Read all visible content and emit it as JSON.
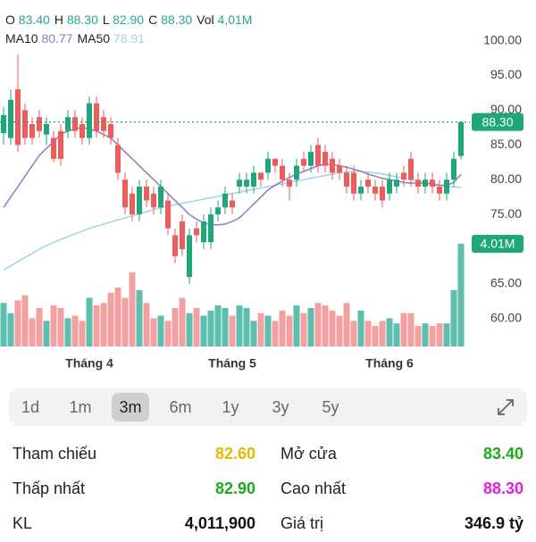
{
  "header": {
    "line1": [
      {
        "key": "O",
        "value": "83.40"
      },
      {
        "key": "H",
        "value": "88.30"
      },
      {
        "key": "L",
        "value": "82.90"
      },
      {
        "key": "C",
        "value": "88.30"
      },
      {
        "key": "Vol",
        "value": "4,01M"
      }
    ],
    "line2": [
      {
        "key": "MA10",
        "value": "80.77",
        "color": "#8e7cc3"
      },
      {
        "key": "MA50",
        "value": "78.91",
        "color": "#9fd3ea"
      }
    ]
  },
  "chart_data": {
    "type": "candlestick",
    "categories": [
      null,
      null,
      null,
      null,
      null,
      null,
      null,
      null,
      null,
      null,
      null,
      null,
      "Tháng 4",
      null,
      null,
      null,
      null,
      null,
      null,
      null,
      null,
      null,
      null,
      null,
      null,
      null,
      null,
      null,
      null,
      null,
      null,
      null,
      "Tháng 5",
      null,
      null,
      null,
      null,
      null,
      null,
      null,
      null,
      null,
      null,
      null,
      null,
      null,
      null,
      null,
      null,
      null,
      null,
      null,
      null,
      null,
      "Tháng 6",
      null,
      null,
      null,
      null,
      null,
      null,
      null,
      null,
      null,
      null
    ],
    "open": [
      86.7,
      86,
      93,
      90,
      88,
      89,
      86.5,
      86,
      87,
      87,
      89,
      88,
      86,
      91,
      89,
      88,
      85,
      80,
      78,
      75,
      79,
      78,
      76,
      77,
      72,
      74,
      66,
      73,
      71,
      71,
      75,
      76,
      77,
      79,
      79,
      79,
      81,
      81,
      83,
      82,
      80,
      80,
      83,
      82,
      85,
      84,
      83,
      82,
      81,
      81,
      78,
      80,
      79,
      79,
      78,
      79,
      81,
      83,
      80,
      79,
      80,
      79,
      78,
      80,
      83.4
    ],
    "close": [
      89.3,
      91.5,
      85,
      86,
      86,
      87,
      88,
      83,
      83,
      89,
      87,
      86,
      91,
      87,
      87,
      86,
      81,
      76,
      75,
      79,
      77,
      76,
      79,
      73,
      69,
      70,
      72,
      72,
      74,
      75,
      76,
      78,
      76,
      80,
      80,
      81,
      80,
      83,
      82,
      80,
      79,
      82,
      82,
      84,
      82,
      82,
      81,
      81,
      79,
      78,
      79,
      79,
      78,
      77,
      80,
      80,
      80,
      80,
      79,
      80,
      79,
      78,
      80,
      83,
      88.3
    ],
    "high": [
      90.5,
      93,
      98,
      91,
      89,
      90,
      89,
      87,
      88,
      90,
      90,
      89,
      92,
      92,
      90,
      89,
      86,
      81,
      79,
      80,
      80,
      79,
      80,
      78,
      73,
      75,
      73,
      74,
      75,
      76,
      77,
      79,
      78,
      81,
      81,
      82,
      81,
      84,
      83,
      83,
      81,
      83,
      84,
      85,
      86,
      85,
      84,
      83,
      82,
      82,
      80,
      81,
      80,
      80,
      81,
      81,
      82,
      84,
      81,
      81,
      81,
      80,
      81,
      84,
      88.3
    ],
    "low": [
      85,
      85,
      84,
      85,
      85,
      86,
      85,
      82.5,
      82,
      86,
      86,
      85,
      85,
      86,
      86,
      85,
      80,
      75,
      74,
      74,
      76,
      75,
      75,
      72,
      68,
      69,
      65,
      71,
      70,
      70,
      74,
      75,
      75,
      78,
      78,
      78,
      79,
      80,
      81,
      79,
      77,
      79,
      81,
      81,
      81,
      81,
      80,
      80,
      78,
      77,
      77,
      78,
      77,
      76,
      77,
      78,
      79,
      79,
      78,
      78,
      78,
      77,
      77,
      79,
      82.9
    ],
    "volume": [
      1.7,
      1.3,
      1.8,
      2,
      1.1,
      1.5,
      1,
      1.6,
      1.5,
      1.1,
      1.2,
      1,
      1.9,
      1.6,
      1.7,
      2.1,
      2.3,
      1.9,
      2.9,
      2.2,
      1.7,
      1.1,
      1.2,
      1,
      1.5,
      1.9,
      1.3,
      1.5,
      1.2,
      1.4,
      1.6,
      1.5,
      1.2,
      1.6,
      1.5,
      1,
      1.3,
      1.2,
      1,
      1.4,
      1.2,
      1.6,
      1.3,
      1.5,
      1.7,
      1.6,
      1.4,
      1.2,
      1.7,
      1,
      1.4,
      1,
      0.8,
      1,
      1.1,
      0.9,
      1.3,
      1.3,
      0.8,
      0.9,
      0.8,
      0.9,
      0.9,
      2.2,
      4.01
    ],
    "ma10": [
      76,
      77.5,
      79,
      80.5,
      82,
      83.5,
      84.5,
      85.5,
      86.5,
      87,
      87.3,
      87.5,
      87.3,
      87,
      86.5,
      86,
      85,
      84,
      83,
      82,
      81,
      80,
      79,
      78,
      77,
      76,
      75,
      74.3,
      73.8,
      73.5,
      73.5,
      73.6,
      74,
      74.5,
      75.5,
      76.5,
      77.5,
      78.5,
      79.2,
      79.8,
      80.3,
      80.8,
      81.2,
      81.6,
      82,
      82.2,
      82.2,
      82,
      81.8,
      81.5,
      81.2,
      80.8,
      80.5,
      80.2,
      80,
      79.8,
      79.6,
      79.5,
      79.5,
      79.5,
      79.3,
      79.2,
      79.2,
      79.6,
      80.77
    ],
    "ma50": [
      67,
      67.6,
      68.2,
      68.8,
      69.4,
      70,
      70.5,
      71,
      71.4,
      71.8,
      72.2,
      72.6,
      73,
      73.3,
      73.6,
      73.9,
      74.2,
      74.5,
      74.8,
      75.1,
      75.4,
      75.7,
      76,
      76.2,
      76.4,
      76.6,
      76.8,
      77,
      77.2,
      77.4,
      77.6,
      77.8,
      78,
      78.2,
      78.4,
      78.6,
      78.8,
      79,
      79.2,
      79.4,
      79.6,
      79.8,
      80,
      80.2,
      80.4,
      80.6,
      80.8,
      81,
      81.1,
      81.2,
      81.2,
      81.1,
      81,
      80.8,
      80.6,
      80.4,
      80.2,
      80,
      79.8,
      79.6,
      79.4,
      79.2,
      79,
      78.95,
      78.91
    ],
    "ma10_color": "#8e7cc3",
    "ma50_color": "#9fd3ea",
    "up_color": "#1fa67a",
    "down_color": "#ef5a5a",
    "up_volume_color": "#5cbfae",
    "down_volume_color": "#f4a0a0",
    "ylim": [
      56,
      102
    ],
    "yticks": [
      {
        "value": 100,
        "label": "100.00"
      },
      {
        "value": 95,
        "label": "95.00"
      },
      {
        "value": 90,
        "label": "90.00"
      },
      {
        "value": 85,
        "label": "85.00"
      },
      {
        "value": 80,
        "label": "80.00"
      },
      {
        "value": 75,
        "label": "75.00"
      },
      {
        "value": 70,
        "label": "70.00"
      },
      {
        "value": 65,
        "label": "65.00"
      },
      {
        "value": 60,
        "label": "60.00"
      }
    ],
    "vlim": [
      0,
      4.01
    ],
    "last_price_label": "88.30",
    "last_volume_label": "4.01M"
  },
  "periods": [
    "1d",
    "1m",
    "3m",
    "6m",
    "1y",
    "3y",
    "5y"
  ],
  "selected_period": "3m",
  "stats": {
    "left": [
      {
        "label": "Tham chiếu",
        "value": "82.60",
        "color": "#e6b800"
      },
      {
        "label": "Thấp nhất",
        "value": "82.90",
        "color": "#1aaa1a"
      },
      {
        "label": "KL",
        "value": "4,011,900",
        "color": "#111"
      }
    ],
    "right": [
      {
        "label": "Mở cửa",
        "value": "83.40",
        "color": "#1aaa1a"
      },
      {
        "label": "Cao nhất",
        "value": "88.30",
        "color": "#e020e0"
      },
      {
        "label": "Giá trị",
        "value": "346.9 tỷ",
        "color": "#111"
      }
    ]
  }
}
